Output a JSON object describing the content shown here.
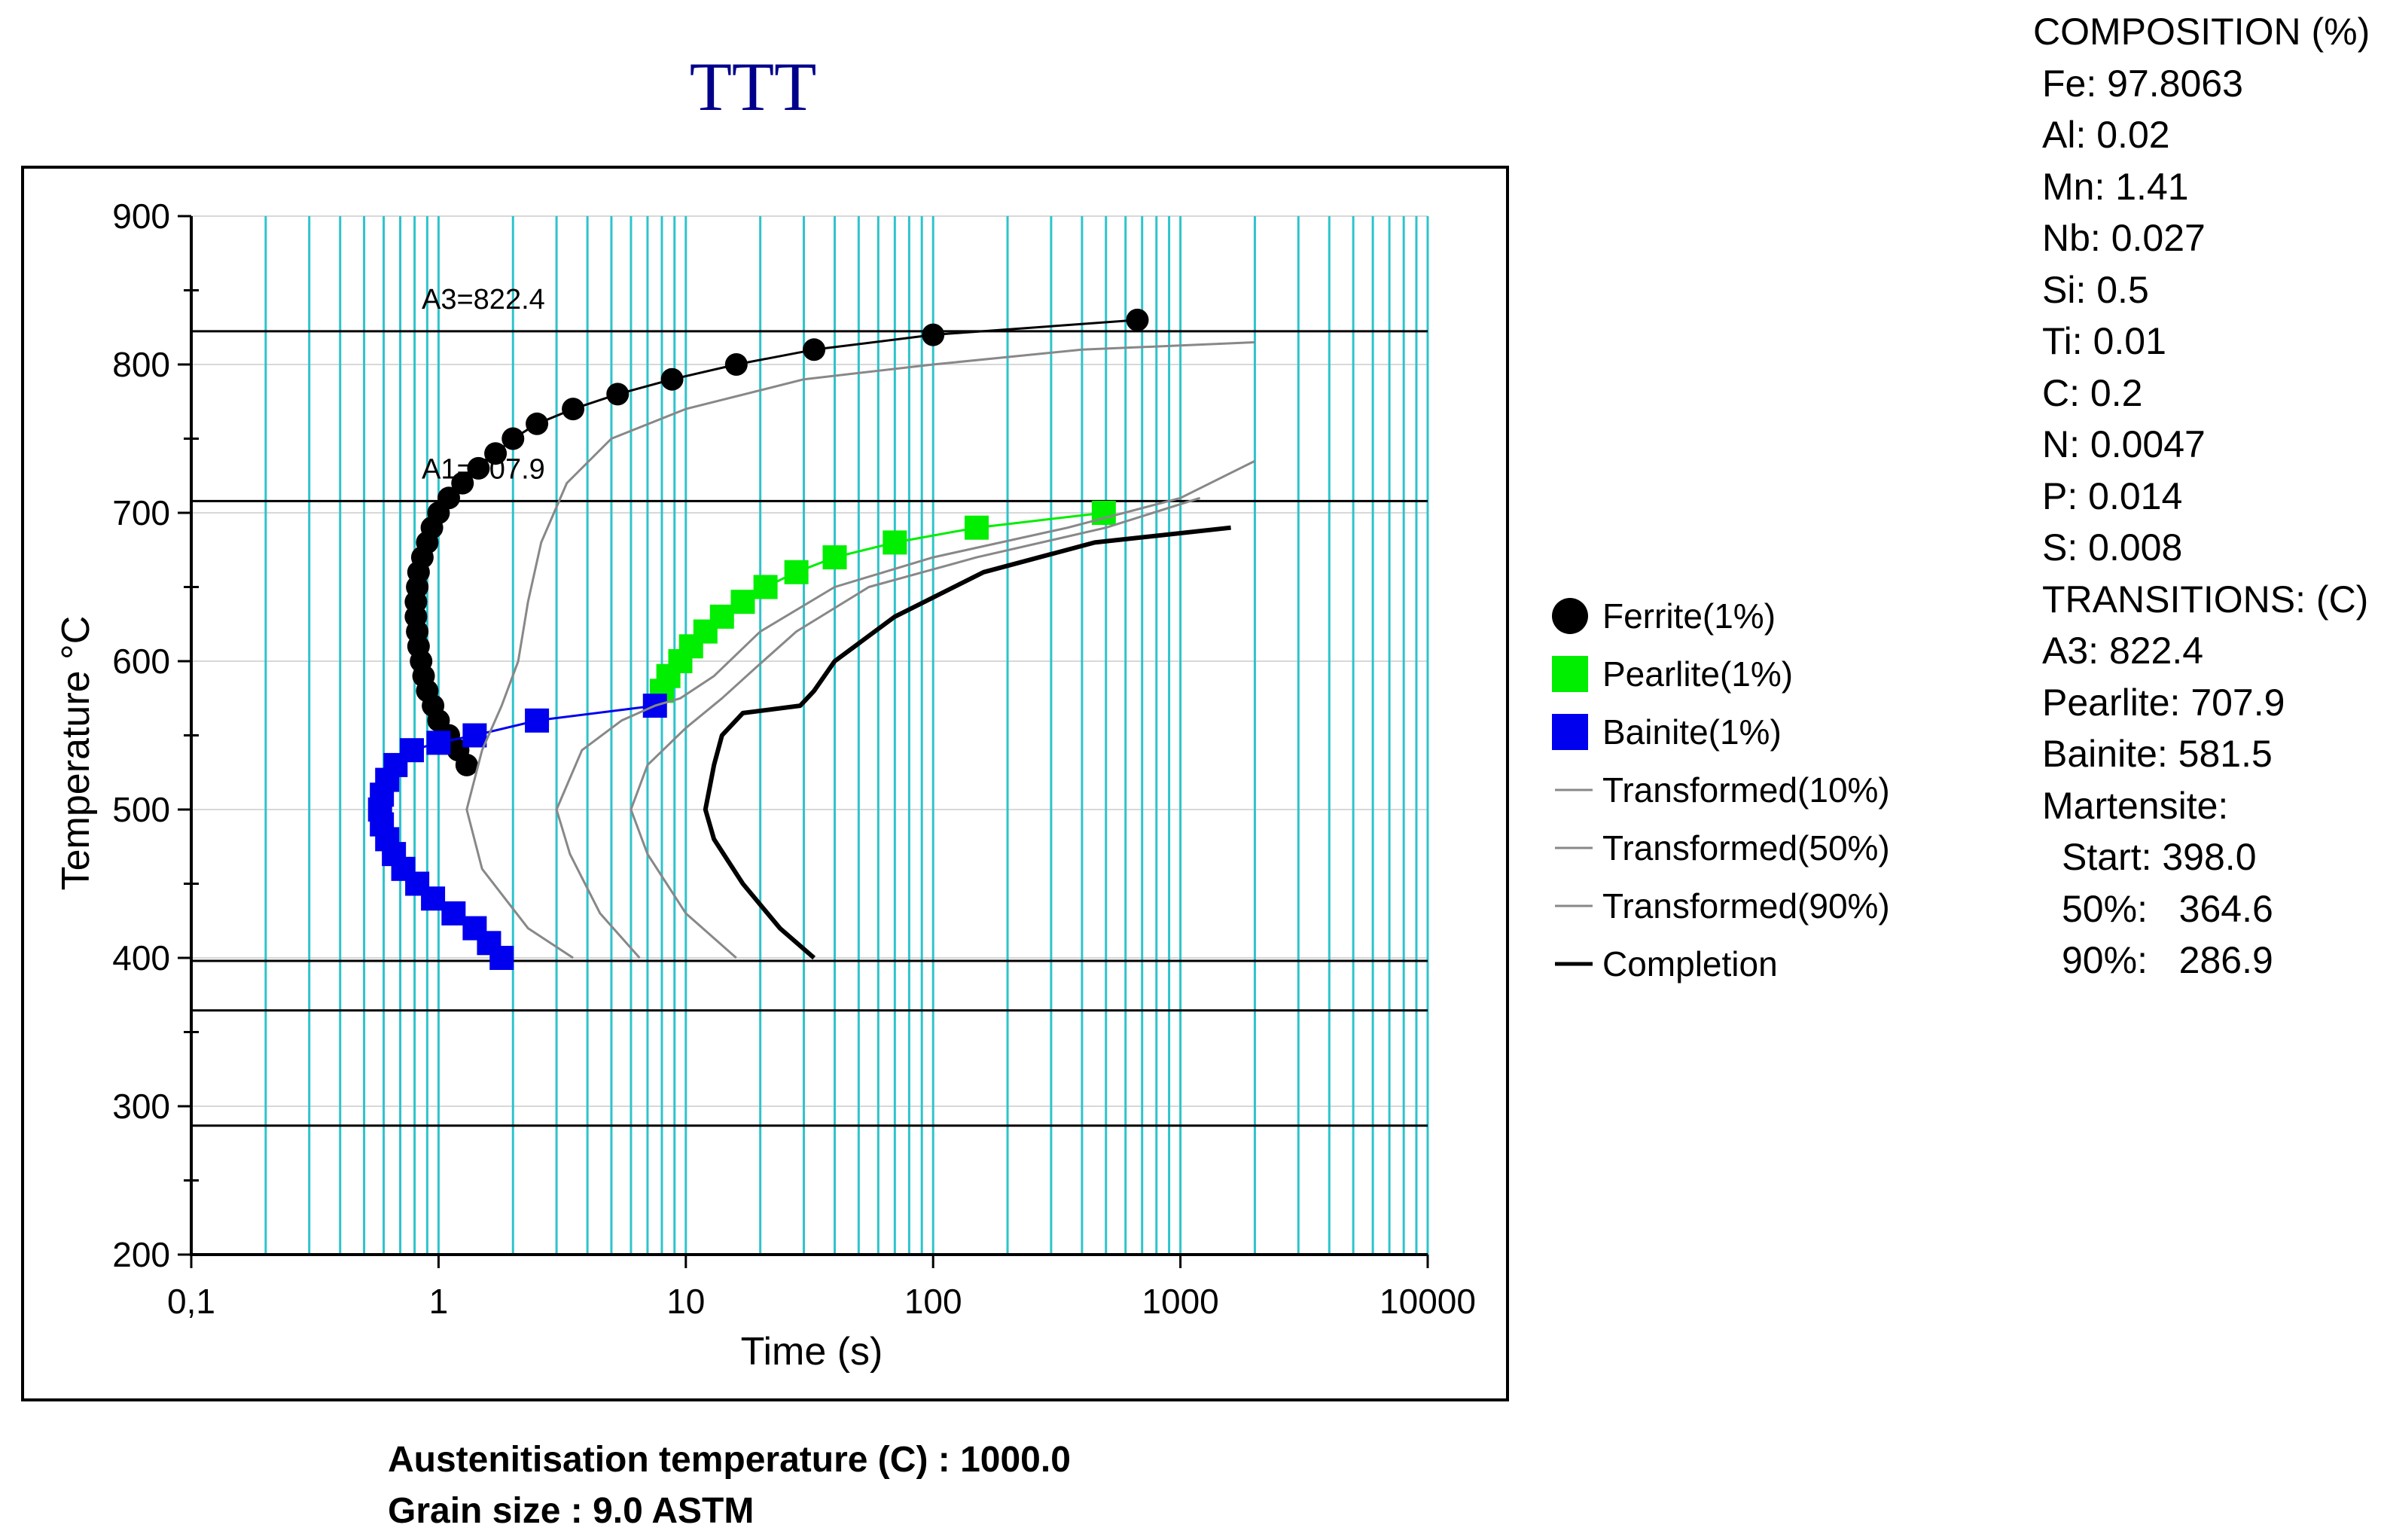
{
  "chart_data": {
    "type": "line",
    "title": "TTT",
    "xlabel": "Time (s)",
    "ylabel": "Temperature °C",
    "x_scale": "log",
    "xlim": [
      0.1,
      10000
    ],
    "ylim": [
      200,
      900
    ],
    "x_tick_labels": [
      "0,1",
      "1",
      "10",
      "100",
      "1000",
      "10000"
    ],
    "y_tick_labels": [
      "200",
      "300",
      "400",
      "500",
      "600",
      "700",
      "800",
      "900"
    ],
    "grid": "vertical log minor lines (cyan), horizontal major lines (light gray)",
    "legend_position": "right",
    "reference_lines": [
      {
        "y": 822.4,
        "label": "A3=822.4"
      },
      {
        "y": 707.9,
        "label": "A1=707.9"
      },
      {
        "y": 398.0,
        "label": ""
      },
      {
        "y": 364.6,
        "label": ""
      },
      {
        "y": 286.9,
        "label": ""
      }
    ],
    "series": [
      {
        "name": "Ferrite(1%)",
        "color": "#000000",
        "marker": "circle",
        "points": [
          [
            1.3,
            530
          ],
          [
            1.2,
            540
          ],
          [
            1.1,
            550
          ],
          [
            1.0,
            560
          ],
          [
            0.95,
            570
          ],
          [
            0.9,
            580
          ],
          [
            0.87,
            590
          ],
          [
            0.85,
            600
          ],
          [
            0.83,
            610
          ],
          [
            0.82,
            620
          ],
          [
            0.81,
            630
          ],
          [
            0.81,
            640
          ],
          [
            0.82,
            650
          ],
          [
            0.83,
            660
          ],
          [
            0.86,
            670
          ],
          [
            0.9,
            680
          ],
          [
            0.94,
            690
          ],
          [
            1.0,
            700
          ],
          [
            1.1,
            710
          ],
          [
            1.25,
            720
          ],
          [
            1.45,
            730
          ],
          [
            1.7,
            740
          ],
          [
            2.0,
            750
          ],
          [
            2.5,
            760
          ],
          [
            3.5,
            770
          ],
          [
            5.3,
            780
          ],
          [
            8.8,
            790
          ],
          [
            16,
            800
          ],
          [
            33,
            810
          ],
          [
            100,
            820
          ],
          [
            670,
            830
          ]
        ]
      },
      {
        "name": "Pearlite(1%)",
        "color": "#00ee00",
        "marker": "square",
        "points": [
          [
            8.0,
            580
          ],
          [
            8.5,
            590
          ],
          [
            9.5,
            600
          ],
          [
            10.5,
            610
          ],
          [
            12,
            620
          ],
          [
            14,
            630
          ],
          [
            17,
            640
          ],
          [
            21,
            650
          ],
          [
            28,
            660
          ],
          [
            40,
            670
          ],
          [
            70,
            680
          ],
          [
            150,
            690
          ],
          [
            490,
            700
          ]
        ]
      },
      {
        "name": "Bainite(1%)",
        "color": "#0000ee",
        "marker": "square",
        "points": [
          [
            1.8,
            400
          ],
          [
            1.6,
            410
          ],
          [
            1.4,
            420
          ],
          [
            1.15,
            430
          ],
          [
            0.95,
            440
          ],
          [
            0.82,
            450
          ],
          [
            0.72,
            460
          ],
          [
            0.66,
            470
          ],
          [
            0.62,
            480
          ],
          [
            0.59,
            490
          ],
          [
            0.58,
            500
          ],
          [
            0.59,
            510
          ],
          [
            0.62,
            520
          ],
          [
            0.67,
            530
          ],
          [
            0.78,
            540
          ],
          [
            1.0,
            545
          ],
          [
            1.4,
            550
          ],
          [
            2.5,
            560
          ],
          [
            7.5,
            570
          ]
        ]
      },
      {
        "name": "Transformed(10%)",
        "color": "#888888",
        "marker": "none",
        "points": [
          [
            3.5,
            400
          ],
          [
            2.3,
            420
          ],
          [
            1.5,
            460
          ],
          [
            1.3,
            500
          ],
          [
            1.5,
            540
          ],
          [
            1.8,
            570
          ],
          [
            2.1,
            600
          ],
          [
            2.3,
            640
          ],
          [
            2.6,
            680
          ],
          [
            3.3,
            720
          ],
          [
            5.0,
            750
          ],
          [
            10,
            770
          ],
          [
            30,
            790
          ],
          [
            100,
            800
          ],
          [
            400,
            810
          ],
          [
            2000,
            815
          ]
        ]
      },
      {
        "name": "Transformed(50%)",
        "color": "#888888",
        "marker": "none",
        "points": [
          [
            6.5,
            400
          ],
          [
            4.5,
            430
          ],
          [
            3.4,
            470
          ],
          [
            3.0,
            500
          ],
          [
            3.8,
            540
          ],
          [
            5.5,
            560
          ],
          [
            7.5,
            570
          ],
          [
            9.5,
            575
          ],
          [
            13,
            590
          ],
          [
            20,
            620
          ],
          [
            40,
            650
          ],
          [
            100,
            670
          ],
          [
            350,
            690
          ],
          [
            1000,
            710
          ],
          [
            2000,
            735
          ]
        ]
      },
      {
        "name": "Transformed(90%)",
        "color": "#888888",
        "marker": "none",
        "points": [
          [
            16,
            400
          ],
          [
            10,
            430
          ],
          [
            7,
            470
          ],
          [
            6,
            500
          ],
          [
            7,
            530
          ],
          [
            10,
            555
          ],
          [
            14,
            575
          ],
          [
            19,
            595
          ],
          [
            28,
            620
          ],
          [
            55,
            650
          ],
          [
            150,
            670
          ],
          [
            500,
            690
          ],
          [
            1200,
            710
          ]
        ]
      },
      {
        "name": "Completion",
        "color": "#000000",
        "marker": "none",
        "points": [
          [
            33,
            400
          ],
          [
            24,
            420
          ],
          [
            17,
            450
          ],
          [
            13,
            480
          ],
          [
            12,
            500
          ],
          [
            13,
            530
          ],
          [
            14,
            550
          ],
          [
            17,
            565
          ],
          [
            29,
            570
          ],
          [
            33,
            580
          ],
          [
            40,
            600
          ],
          [
            70,
            630
          ],
          [
            160,
            660
          ],
          [
            450,
            680
          ],
          [
            1600,
            690
          ]
        ]
      }
    ]
  },
  "composition": {
    "heading": "COMPOSITION (%)",
    "items": [
      "Fe: 97.8063",
      "Al: 0.02",
      "Mn: 1.41",
      "Nb: 0.027",
      "Si: 0.5",
      "Ti: 0.01",
      "C: 0.2",
      "N: 0.0047",
      "P: 0.014",
      "S: 0.008"
    ]
  },
  "transitions": {
    "heading": "TRANSITIONS: (C)",
    "a3": "A3: 822.4",
    "pearlite": "Pearlite: 707.9",
    "bainite": "Bainite: 581.5",
    "martensite": "Martensite:",
    "start": "Start: 398.0",
    "m50": "50%:   364.6",
    "m90": "90%:   286.9"
  },
  "footer": {
    "austenitisation": "Austenitisation temperature (C) : 1000.0",
    "grain_size": "Grain size : 9.0 ASTM"
  },
  "colors": {
    "grid_vertical": "#2ec4cc",
    "grid_horizontal": "#d8d8d8",
    "title": "#00008b",
    "ferrite": "#000000",
    "pearlite": "#00ee00",
    "bainite": "#0000ee",
    "transformed": "#888888"
  }
}
